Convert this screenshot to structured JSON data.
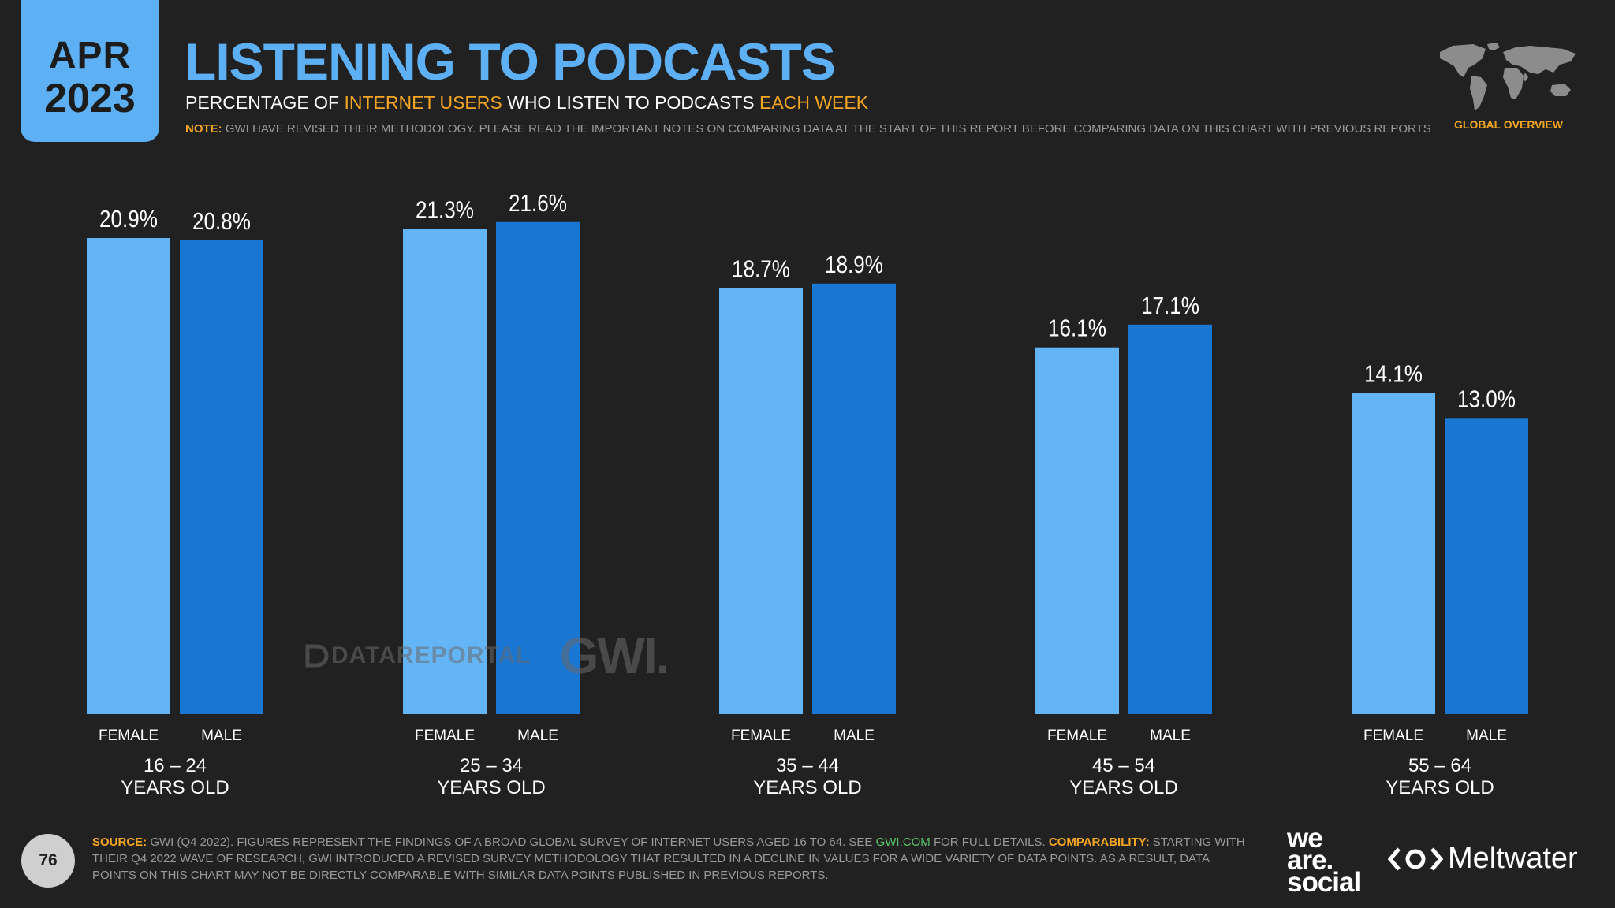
{
  "header": {
    "month": "APR",
    "year": "2023",
    "title": "LISTENING TO PODCASTS",
    "subtitle_parts": [
      "PERCENTAGE OF ",
      "INTERNET USERS",
      " WHO LISTEN TO PODCASTS ",
      "EACH WEEK"
    ],
    "note_label": "NOTE:",
    "note_text": "GWI HAVE REVISED THEIR METHODOLOGY. PLEASE READ THE IMPORTANT NOTES ON COMPARING DATA AT THE START OF THIS REPORT BEFORE COMPARING DATA ON THIS CHART WITH PREVIOUS REPORTS",
    "region_label": "GLOBAL OVERVIEW"
  },
  "chart_data": {
    "type": "bar",
    "title": "LISTENING TO PODCASTS",
    "ylabel": "PERCENTAGE OF INTERNET USERS WHO LISTEN TO PODCASTS EACH WEEK",
    "ylim": [
      0,
      22
    ],
    "categories": [
      "16 – 24",
      "25 – 34",
      "35 – 44",
      "45 – 54",
      "55 – 64"
    ],
    "category_suffix": "YEARS OLD",
    "series": [
      {
        "name": "FEMALE",
        "color": "#64b5f6",
        "values": [
          20.9,
          21.3,
          18.7,
          16.1,
          14.1
        ],
        "labels": [
          "20.9%",
          "21.3%",
          "18.7%",
          "16.1%",
          "14.1%"
        ]
      },
      {
        "name": "MALE",
        "color": "#1976d2",
        "values": [
          20.8,
          21.6,
          18.9,
          17.1,
          13.0
        ],
        "labels": [
          "20.8%",
          "21.6%",
          "18.9%",
          "17.1%",
          "13.0%"
        ]
      }
    ]
  },
  "watermark": {
    "datareportal": "DATAREPORTAL",
    "gwi": "GWI."
  },
  "footer": {
    "page_number": "76",
    "source_label": "SOURCE:",
    "source_text_1": "GWI (Q4 2022). FIGURES REPRESENT THE FINDINGS OF A BROAD GLOBAL SURVEY OF INTERNET USERS AGED 16 TO 64. SEE",
    "source_link": "GWI.COM",
    "source_text_2": "FOR FULL DETAILS.",
    "comparability_label": "COMPARABILITY:",
    "comparability_text": "STARTING WITH THEIR Q4 2022 WAVE OF RESEARCH, GWI INTRODUCED A REVISED SURVEY METHODOLOGY THAT RESULTED IN A DECLINE IN VALUES FOR A WIDE VARIETY OF DATA POINTS. AS A RESULT, DATA POINTS ON THIS CHART MAY NOT BE DIRECTLY COMPARABLE WITH SIMILAR DATA POINTS PUBLISHED IN PREVIOUS REPORTS.",
    "brand_1_lines": [
      "we",
      "are.",
      "social"
    ],
    "brand_2": "Meltwater"
  },
  "colors": {
    "accent_blue": "#5eb0f5",
    "highlight_orange": "#f5a623",
    "background": "#212121"
  }
}
